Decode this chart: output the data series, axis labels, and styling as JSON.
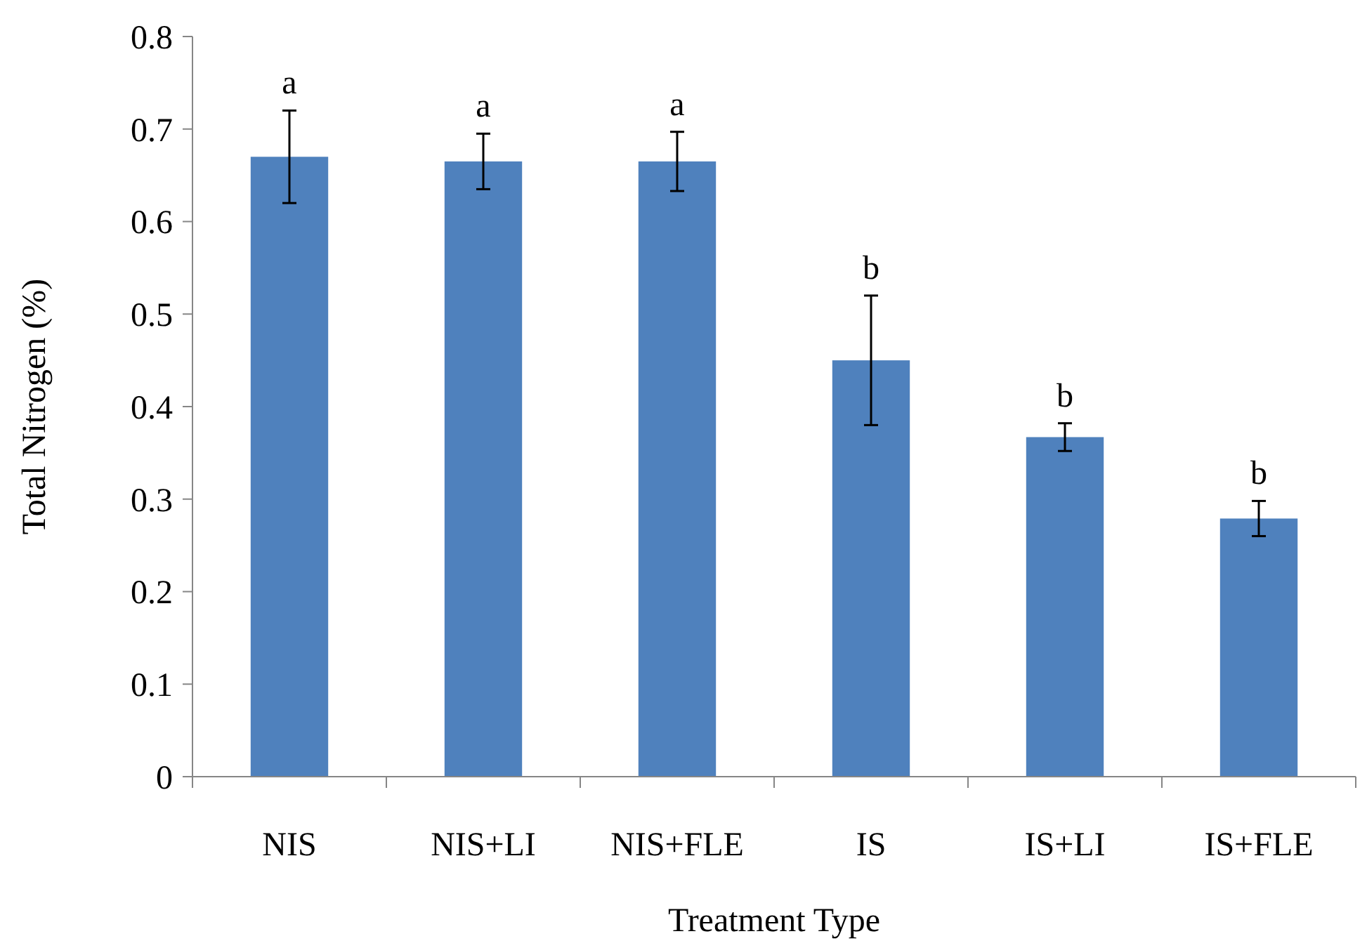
{
  "chart_data": {
    "type": "bar",
    "xlabel": "Treatment Type",
    "ylabel": "Total Nitrogen (%)",
    "categories": [
      "NIS",
      "NIS+LI",
      "NIS+FLE",
      "IS",
      "IS+LI",
      "IS+FLE"
    ],
    "values": [
      0.67,
      0.665,
      0.665,
      0.45,
      0.367,
      0.279
    ],
    "errors": [
      0.05,
      0.03,
      0.032,
      0.07,
      0.015,
      0.019
    ],
    "color": "#4f81bd",
    "ylim": [
      0,
      0.8
    ],
    "yticks": [
      {
        "value": 0,
        "label": "0"
      },
      0.1,
      0.2,
      0.3,
      0.4,
      0.5,
      0.6,
      0.7,
      0.8
    ],
    "grid": false,
    "annotations": [
      {
        "text": "a",
        "x": "NIS",
        "y": 0.72
      },
      {
        "text": "a",
        "x": "NIS+LI",
        "y": 0.695
      },
      {
        "text": "a",
        "x": "NIS+FLE",
        "y": 0.697
      },
      {
        "text": "b",
        "x": "IS",
        "y": 0.52
      },
      {
        "text": "b",
        "x": "IS+LI",
        "y": 0.382
      },
      {
        "text": "b",
        "x": "IS+FLE",
        "y": 0.298
      }
    ]
  }
}
